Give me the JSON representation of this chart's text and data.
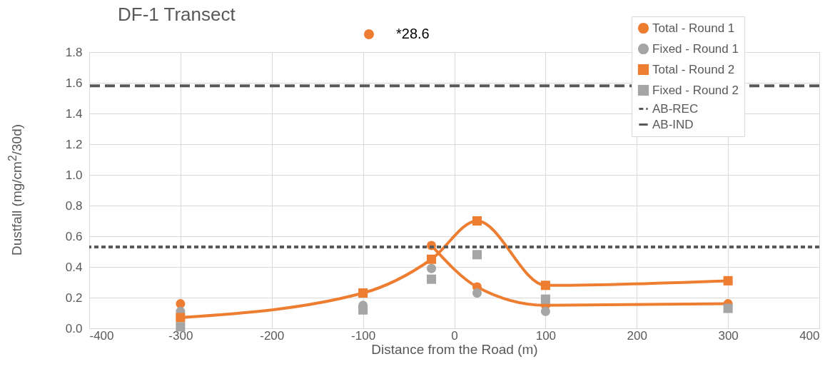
{
  "chart_data": {
    "type": "line",
    "title": "DF-1 Transect",
    "xlabel": "Distance from the Road (m)",
    "ylabel": "Dustfall (mg/cm$^{2}$/30d)",
    "x": [
      -300,
      -100,
      -25,
      25,
      100,
      300
    ],
    "series": [
      {
        "name": "Total - Round 1",
        "type": "line",
        "color": "#ed7d31",
        "marker": "circle",
        "values": [
          0.16,
          null,
          0.54,
          0.27,
          0.15,
          0.16
        ]
      },
      {
        "name": "Fixed - Round 1",
        "type": "scatter",
        "color": "#a5a5a5",
        "marker": "circle",
        "values": [
          0.11,
          0.15,
          0.39,
          0.23,
          0.11,
          null
        ]
      },
      {
        "name": "Total - Round 2",
        "type": "line",
        "color": "#ed7d31",
        "marker": "square",
        "values": [
          0.07,
          0.23,
          0.45,
          0.7,
          0.28,
          0.31
        ]
      },
      {
        "name": "Fixed - Round 2",
        "type": "scatter",
        "color": "#a5a5a5",
        "marker": "square",
        "values": [
          0.01,
          0.12,
          0.32,
          0.48,
          0.19,
          0.13
        ]
      }
    ],
    "ref_lines": [
      {
        "axis": "y",
        "value": 0.53,
        "label": "AB-REC",
        "color": "#595959",
        "line_style": "dotted"
      },
      {
        "axis": "y",
        "value": 1.58,
        "label": "AB-IND",
        "color": "#595959",
        "line_style": "dashed"
      }
    ],
    "annotations": [
      "*28.6"
    ],
    "xlim": [
      -400,
      400
    ],
    "xticks": [
      -400,
      -300,
      -200,
      -100,
      0,
      100,
      200,
      300,
      400
    ],
    "ylim": [
      0,
      1.8
    ],
    "yticks": [
      {
        "value": 0,
        "label": "0.0"
      },
      0.2,
      0.4,
      0.6,
      0.8,
      {
        "value": 1,
        "label": "1.0"
      },
      1.2,
      1.4,
      1.6,
      1.8
    ],
    "grid": true,
    "legend": "top right"
  }
}
